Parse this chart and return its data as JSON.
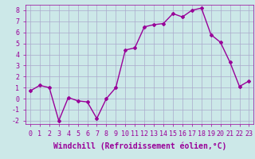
{
  "x": [
    0,
    1,
    2,
    3,
    4,
    5,
    6,
    7,
    8,
    9,
    10,
    11,
    12,
    13,
    14,
    15,
    16,
    17,
    18,
    19,
    20,
    21,
    22,
    23
  ],
  "y": [
    0.7,
    1.2,
    1.0,
    -2.0,
    0.1,
    -0.2,
    -0.3,
    -1.8,
    0.0,
    1.0,
    4.4,
    4.6,
    6.5,
    6.7,
    6.8,
    7.7,
    7.4,
    8.0,
    8.2,
    5.8,
    5.1,
    3.3,
    1.1,
    1.6
  ],
  "line_color": "#990099",
  "marker": "D",
  "marker_size": 2,
  "bg_color": "#cce8e8",
  "grid_color": "#aaaacc",
  "xlabel": "Windchill (Refroidissement éolien,°C)",
  "xlim_min": -0.5,
  "xlim_max": 23.5,
  "ylim_min": -2.3,
  "ylim_max": 8.5,
  "yticks": [
    -2,
    -1,
    0,
    1,
    2,
    3,
    4,
    5,
    6,
    7,
    8
  ],
  "xticks": [
    0,
    1,
    2,
    3,
    4,
    5,
    6,
    7,
    8,
    9,
    10,
    11,
    12,
    13,
    14,
    15,
    16,
    17,
    18,
    19,
    20,
    21,
    22,
    23
  ],
  "label_fontsize": 7,
  "tick_fontsize": 6,
  "line_width": 1.0,
  "label_color": "#990099",
  "tick_color": "#990099",
  "spine_color": "#990099"
}
